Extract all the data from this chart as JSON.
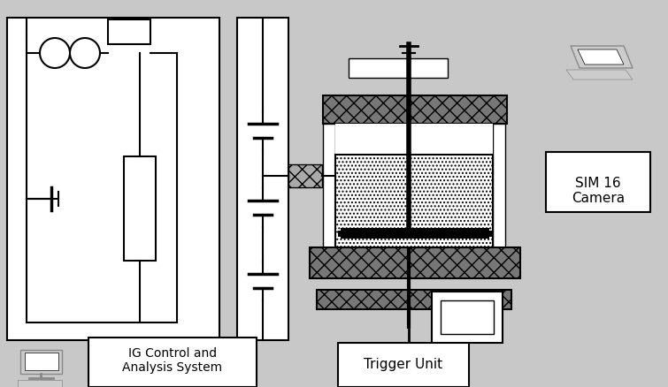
{
  "bg": "#c8c8c8",
  "white": "#ffffff",
  "black": "#000000",
  "gray": "#888888",
  "darkgray": "#555555",
  "label_ig": "IG Control and\nAnalysis System",
  "label_trigger": "Trigger Unit",
  "label_sim": "SIM 16\nCamera",
  "fontsize": 10,
  "lw": 1.5
}
